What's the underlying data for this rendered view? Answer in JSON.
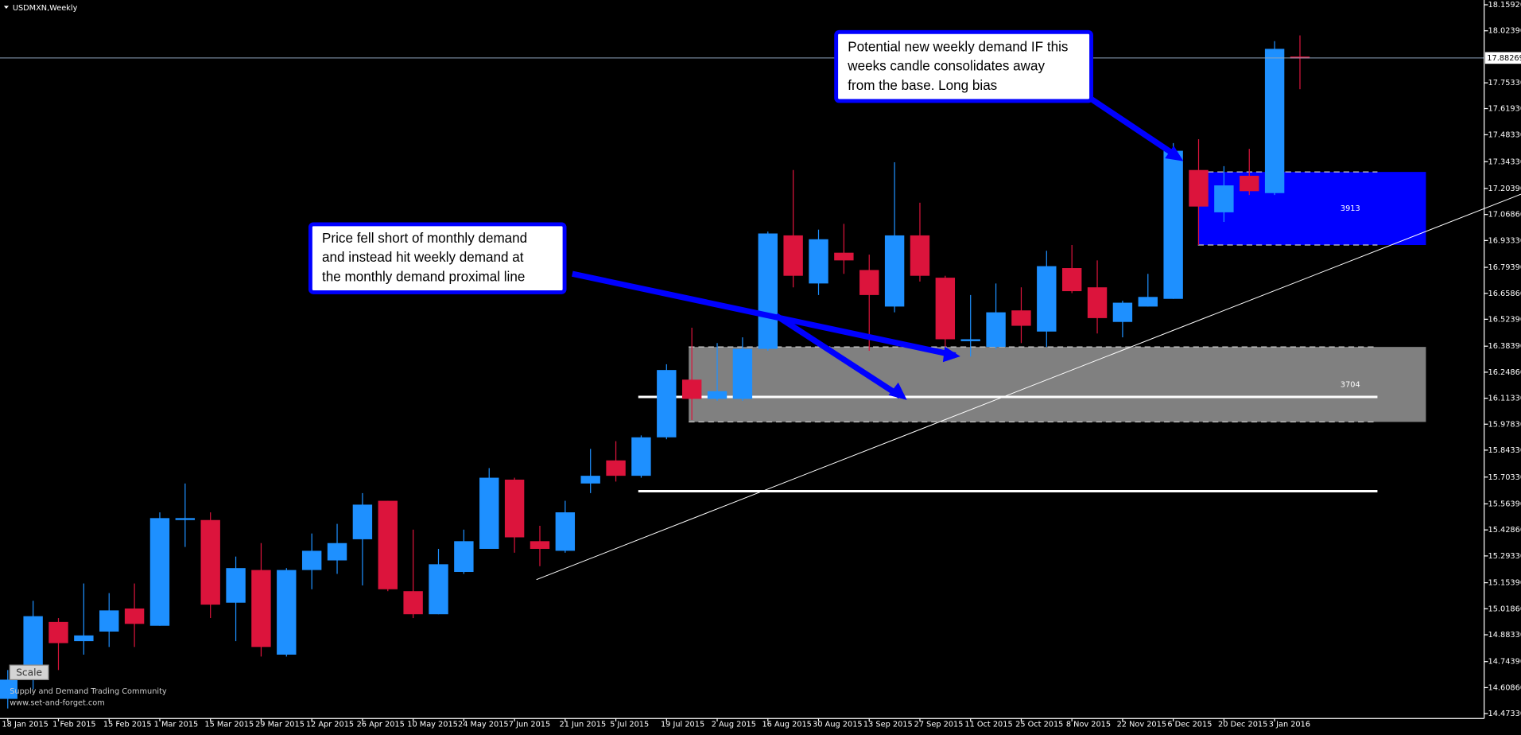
{
  "chart_data": {
    "type": "candlestick",
    "title": "USDMXN,Weekly",
    "categories": [
      "18 Jan 2015",
      null,
      "1 Feb 2015",
      null,
      "15 Feb 2015",
      null,
      "1 Mar 2015",
      null,
      "15 Mar 2015",
      null,
      "29 Mar 2015",
      null,
      "12 Apr 2015",
      null,
      "26 Apr 2015",
      null,
      "10 May 2015",
      null,
      "24 May 2015",
      null,
      "7 Jun 2015",
      null,
      "21 Jun 2015",
      null,
      "5 Jul 2015",
      null,
      "19 Jul 2015",
      null,
      "2 Aug 2015",
      null,
      "16 Aug 2015",
      null,
      "30 Aug 2015",
      null,
      "13 Sep 2015",
      null,
      "27 Sep 2015",
      null,
      "11 Oct 2015",
      null,
      "25 Oct 2015",
      null,
      "8 Nov 2015",
      null,
      "22 Nov 2015",
      null,
      "6 Dec 2015",
      null,
      "20 Dec 2015",
      null,
      "3 Jan 2016",
      null
    ],
    "open": [
      14.55,
      14.68,
      14.95,
      14.85,
      14.9,
      15.02,
      14.93,
      15.48,
      15.48,
      15.05,
      15.22,
      14.78,
      15.22,
      15.27,
      15.38,
      15.58,
      15.11,
      14.99,
      15.21,
      15.33,
      15.69,
      15.37,
      15.32,
      15.67,
      15.79,
      15.71,
      15.91,
      16.21,
      16.11,
      16.11,
      16.37,
      16.96,
      16.71,
      16.87,
      16.78,
      16.59,
      16.96,
      16.74,
      16.41,
      16.38,
      16.57,
      16.46,
      16.79,
      16.69,
      16.51,
      16.59,
      16.63,
      17.3,
      17.08,
      17.27,
      17.18,
      17.89
    ],
    "high": [
      14.7,
      15.06,
      14.97,
      15.15,
      15.1,
      15.15,
      15.52,
      15.67,
      15.52,
      15.29,
      15.36,
      15.23,
      15.41,
      15.46,
      15.62,
      15.58,
      15.43,
      15.33,
      15.43,
      15.75,
      15.7,
      15.45,
      15.58,
      15.85,
      15.89,
      15.92,
      16.29,
      16.48,
      16.4,
      16.43,
      16.98,
      17.3,
      16.99,
      17.02,
      16.86,
      17.34,
      17.13,
      16.75,
      16.65,
      16.71,
      16.69,
      16.88,
      16.91,
      16.83,
      16.62,
      16.76,
      17.44,
      17.46,
      17.32,
      17.41,
      17.97,
      18.0
    ],
    "low": [
      14.5,
      14.6,
      14.7,
      14.78,
      14.82,
      14.82,
      14.93,
      15.34,
      14.97,
      14.85,
      14.77,
      14.77,
      15.12,
      15.2,
      15.14,
      15.11,
      14.97,
      14.99,
      15.2,
      15.33,
      15.31,
      15.24,
      15.31,
      15.62,
      15.68,
      15.7,
      15.9,
      16.0,
      16.1,
      16.1,
      16.36,
      16.69,
      16.65,
      16.76,
      16.36,
      16.56,
      16.72,
      16.38,
      16.33,
      16.37,
      16.4,
      16.38,
      16.66,
      16.45,
      16.43,
      16.59,
      16.63,
      16.91,
      17.03,
      17.17,
      17.17,
      17.72
    ],
    "close": [
      14.65,
      14.98,
      14.84,
      14.88,
      15.01,
      14.94,
      15.49,
      15.49,
      15.04,
      15.23,
      14.82,
      15.22,
      15.32,
      15.36,
      15.56,
      15.12,
      14.99,
      15.25,
      15.37,
      15.7,
      15.39,
      15.33,
      15.52,
      15.71,
      15.71,
      15.91,
      16.26,
      16.11,
      16.15,
      16.37,
      16.97,
      16.75,
      16.94,
      16.83,
      16.65,
      16.96,
      16.75,
      16.42,
      16.42,
      16.56,
      16.49,
      16.8,
      16.67,
      16.53,
      16.61,
      16.64,
      17.4,
      17.11,
      17.22,
      17.19,
      17.93,
      17.88
    ],
    "up_color": "#1e90ff",
    "down_color": "#dc143c",
    "ylim": [
      14.448,
      18.184
    ],
    "yticks": [
      {
        "value": 18.1592,
        "label": "18.15920"
      },
      {
        "value": 18.0239,
        "label": "18.02390"
      },
      {
        "value": 17.7533,
        "label": "17.75330"
      },
      {
        "value": 17.6193,
        "label": "17.61930"
      },
      {
        "value": 17.4833,
        "label": "17.48330"
      },
      {
        "value": 17.3433,
        "label": "17.34330"
      },
      {
        "value": 17.2039,
        "label": "17.20390"
      },
      {
        "value": 17.0686,
        "label": "17.06860"
      },
      {
        "value": 16.9333,
        "label": "16.93330"
      },
      {
        "value": 16.7939,
        "label": "16.79390"
      },
      {
        "value": 16.6586,
        "label": "16.65860"
      },
      {
        "value": 16.5239,
        "label": "16.52390"
      },
      {
        "value": 16.3839,
        "label": "16.38390"
      },
      {
        "value": 16.2486,
        "label": "16.24860"
      },
      {
        "value": 16.1133,
        "label": "16.11330"
      },
      {
        "value": 15.9783,
        "label": "15.97830"
      },
      {
        "value": 15.8433,
        "label": "15.84330"
      },
      {
        "value": 15.7033,
        "label": "15.70330"
      },
      {
        "value": 15.5639,
        "label": "15.56390"
      },
      {
        "value": 15.4286,
        "label": "15.42860"
      },
      {
        "value": 15.2933,
        "label": "15.29330"
      },
      {
        "value": 15.1539,
        "label": "15.15390"
      },
      {
        "value": 15.0186,
        "label": "15.01860"
      },
      {
        "value": 14.8833,
        "label": "14.88330"
      },
      {
        "value": 14.7439,
        "label": "14.74390"
      },
      {
        "value": 14.6086,
        "label": "14.60860"
      },
      {
        "value": 14.4733,
        "label": "14.47330"
      }
    ],
    "current_price": 17.88269,
    "zones": [
      {
        "label": "3913",
        "top": 17.29,
        "bottom": 16.91,
        "color": "#0000ff"
      },
      {
        "label": "3704",
        "top": 16.38,
        "bottom": 15.99,
        "color": "#808080"
      }
    ],
    "levels": [
      16.12,
      15.63
    ],
    "annotations": [
      {
        "lines": [
          "Price fell short of monthly demand",
          "and instead hit weekly demand at",
          "the monthly demand proximal line"
        ]
      },
      {
        "lines": [
          "Potential new weekly demand IF this",
          "weeks candle consolidates away",
          "from the base. Long bias"
        ]
      }
    ],
    "button": "Scale",
    "footer": [
      "Supply and Demand Trading Community",
      "www.set-and-forget.com"
    ]
  }
}
